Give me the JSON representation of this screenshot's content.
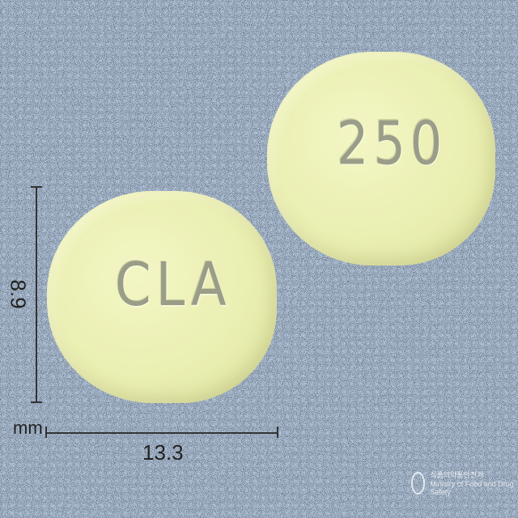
{
  "pills": [
    {
      "imprint": "CLA"
    },
    {
      "imprint": "250"
    }
  ],
  "dimensions": {
    "height": "8.9",
    "width": "13.3",
    "unit": "mm"
  },
  "watermark": {
    "line1": "식품의약품안전처",
    "line2": "Ministry of Food and Drug Safety"
  },
  "colors": {
    "background": "#bcd0e8",
    "pill": "#eef2bb",
    "imprint": "#9a9d88"
  }
}
